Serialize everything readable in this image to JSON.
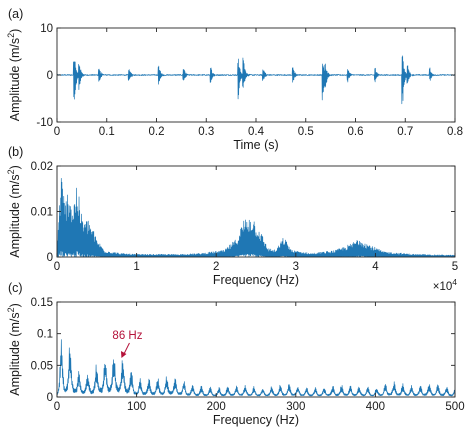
{
  "chart_data": [
    {
      "type": "line",
      "panel_label": "(a)",
      "xlabel": "Time (s)",
      "ylabel": "Amplitude (m/s",
      "ylabel_sup": "2",
      "ylabel_close": ")",
      "xlim": [
        0,
        0.8
      ],
      "ylim": [
        -10,
        10
      ],
      "xticks": [
        0,
        0.1,
        0.2,
        0.3,
        0.4,
        0.5,
        0.6,
        0.7,
        0.8
      ],
      "xtick_labels": [
        "0",
        "0.1",
        "0.2",
        "0.3",
        "0.4",
        "0.5",
        "0.6",
        "0.7",
        "0.8"
      ],
      "yticks": [
        -10,
        0,
        10
      ],
      "ytick_labels": [
        "-10",
        "0",
        "10"
      ],
      "color": "#1f77b4",
      "events": [
        {
          "t": 0.035,
          "peak": 5,
          "trough": -7.5
        },
        {
          "t": 0.045,
          "peak": 3,
          "trough": -3
        },
        {
          "t": 0.085,
          "peak": 1.5,
          "trough": -1.5
        },
        {
          "t": 0.145,
          "peak": 1.5,
          "trough": -1.5
        },
        {
          "t": 0.205,
          "peak": 2,
          "trough": -2
        },
        {
          "t": 0.255,
          "peak": 1.5,
          "trough": -1.5
        },
        {
          "t": 0.31,
          "peak": 1.5,
          "trough": -1.5
        },
        {
          "t": 0.365,
          "peak": 3.5,
          "trough": -5.5
        },
        {
          "t": 0.375,
          "peak": 4,
          "trough": -3
        },
        {
          "t": 0.415,
          "peak": 1.5,
          "trough": -1.5
        },
        {
          "t": 0.475,
          "peak": 1.5,
          "trough": -1.5
        },
        {
          "t": 0.535,
          "peak": 2.5,
          "trough": -6
        },
        {
          "t": 0.54,
          "peak": 2,
          "trough": -2
        },
        {
          "t": 0.585,
          "peak": 1.5,
          "trough": -1.5
        },
        {
          "t": 0.64,
          "peak": 1.5,
          "trough": -1.5
        },
        {
          "t": 0.695,
          "peak": 4,
          "trough": -7
        },
        {
          "t": 0.705,
          "peak": 2,
          "trough": -2
        },
        {
          "t": 0.75,
          "peak": 1.5,
          "trough": -1.5
        }
      ]
    },
    {
      "type": "line",
      "panel_label": "(b)",
      "xlabel": "Frequency (Hz)",
      "ylabel": "Amplitude (m/s",
      "ylabel_sup": "2",
      "ylabel_close": ")",
      "xlim": [
        0,
        5
      ],
      "ylim": [
        0,
        0.02
      ],
      "x_multiplier": "×10",
      "x_multiplier_exp": "4",
      "xticks": [
        0,
        1,
        2,
        3,
        4,
        5
      ],
      "xtick_labels": [
        "0",
        "1",
        "2",
        "3",
        "4",
        "5"
      ],
      "yticks": [
        0,
        0.01,
        0.02
      ],
      "ytick_labels": [
        "0",
        "0.01",
        "0.02"
      ],
      "color": "#1f77b4",
      "envelope": [
        {
          "x": 0.0,
          "y": 0.002
        },
        {
          "x": 0.05,
          "y": 0.019
        },
        {
          "x": 0.1,
          "y": 0.012
        },
        {
          "x": 0.15,
          "y": 0.016
        },
        {
          "x": 0.2,
          "y": 0.011
        },
        {
          "x": 0.25,
          "y": 0.017
        },
        {
          "x": 0.3,
          "y": 0.01
        },
        {
          "x": 0.35,
          "y": 0.008
        },
        {
          "x": 0.4,
          "y": 0.0085
        },
        {
          "x": 0.5,
          "y": 0.004
        },
        {
          "x": 0.6,
          "y": 0.0015
        },
        {
          "x": 0.8,
          "y": 0.0008
        },
        {
          "x": 1.0,
          "y": 0.0006
        },
        {
          "x": 1.5,
          "y": 0.0006
        },
        {
          "x": 1.8,
          "y": 0.0008
        },
        {
          "x": 2.1,
          "y": 0.0015
        },
        {
          "x": 2.25,
          "y": 0.004
        },
        {
          "x": 2.35,
          "y": 0.0085
        },
        {
          "x": 2.45,
          "y": 0.0095
        },
        {
          "x": 2.55,
          "y": 0.006
        },
        {
          "x": 2.65,
          "y": 0.002
        },
        {
          "x": 2.75,
          "y": 0.0015
        },
        {
          "x": 2.85,
          "y": 0.0045
        },
        {
          "x": 2.95,
          "y": 0.0015
        },
        {
          "x": 3.2,
          "y": 0.0008
        },
        {
          "x": 3.5,
          "y": 0.0015
        },
        {
          "x": 3.7,
          "y": 0.003
        },
        {
          "x": 3.8,
          "y": 0.0045
        },
        {
          "x": 3.9,
          "y": 0.003
        },
        {
          "x": 4.1,
          "y": 0.0012
        },
        {
          "x": 4.5,
          "y": 0.0006
        },
        {
          "x": 5.0,
          "y": 0.0004
        }
      ]
    },
    {
      "type": "line",
      "panel_label": "(c)",
      "xlabel": "Frequency (Hz)",
      "ylabel": "Amplitude (m/s",
      "ylabel_sup": "2",
      "ylabel_close": ")",
      "xlim": [
        0,
        500
      ],
      "ylim": [
        0,
        0.15
      ],
      "xticks": [
        0,
        100,
        200,
        300,
        400,
        500
      ],
      "xtick_labels": [
        "0",
        "100",
        "200",
        "300",
        "400",
        "500"
      ],
      "yticks": [
        0,
        0.05,
        0.1,
        0.15
      ],
      "ytick_labels": [
        "0",
        "0.05",
        "0.1",
        "0.15"
      ],
      "color": "#1f77b4",
      "annotation": {
        "text": "86 Hz",
        "x": 86,
        "y": 0.06,
        "color": "#b5123a"
      },
      "envelope": [
        {
          "x": 0,
          "y": 0.02
        },
        {
          "x": 5,
          "y": 0.105
        },
        {
          "x": 10,
          "y": 0.06
        },
        {
          "x": 15,
          "y": 0.095
        },
        {
          "x": 25,
          "y": 0.045
        },
        {
          "x": 40,
          "y": 0.04
        },
        {
          "x": 55,
          "y": 0.06
        },
        {
          "x": 65,
          "y": 0.07
        },
        {
          "x": 75,
          "y": 0.072
        },
        {
          "x": 86,
          "y": 0.06
        },
        {
          "x": 100,
          "y": 0.03
        },
        {
          "x": 120,
          "y": 0.03
        },
        {
          "x": 145,
          "y": 0.035
        },
        {
          "x": 170,
          "y": 0.02
        },
        {
          "x": 200,
          "y": 0.015
        },
        {
          "x": 230,
          "y": 0.02
        },
        {
          "x": 260,
          "y": 0.015
        },
        {
          "x": 290,
          "y": 0.022
        },
        {
          "x": 320,
          "y": 0.015
        },
        {
          "x": 360,
          "y": 0.02
        },
        {
          "x": 400,
          "y": 0.015
        },
        {
          "x": 420,
          "y": 0.025
        },
        {
          "x": 450,
          "y": 0.018
        },
        {
          "x": 470,
          "y": 0.022
        },
        {
          "x": 500,
          "y": 0.015
        }
      ]
    }
  ]
}
